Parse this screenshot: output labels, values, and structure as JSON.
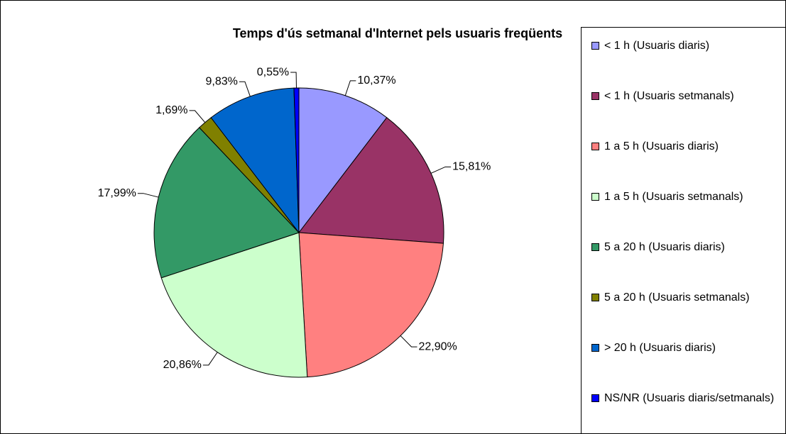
{
  "chart_data": {
    "type": "pie",
    "title": "Temps d'ús setmanal d'Internet pels usuaris freqüents",
    "categories": [
      "< 1 h (Usuaris diaris)",
      "< 1 h (Usuaris setmanals)",
      "1 a 5 h (Usuaris diaris)",
      "1 a 5 h (Usuaris setmanals)",
      "5 a 20 h (Usuaris diaris)",
      "5 a 20 h (Usuaris setmanals)",
      "> 20 h (Usuaris diaris)",
      "NS/NR (Usuaris diaris/setmanals)"
    ],
    "values": [
      10.37,
      15.81,
      22.9,
      20.86,
      17.99,
      1.69,
      9.83,
      0.55
    ],
    "value_labels": [
      "10,37%",
      "15,81%",
      "22,90%",
      "20,86%",
      "17,99%",
      "1,69%",
      "9,83%",
      "0,55%"
    ],
    "colors": [
      "#9999ff",
      "#993366",
      "#ff8080",
      "#ccffcc",
      "#339966",
      "#808000",
      "#0066cc",
      "#0000ff"
    ],
    "legend": "right"
  }
}
